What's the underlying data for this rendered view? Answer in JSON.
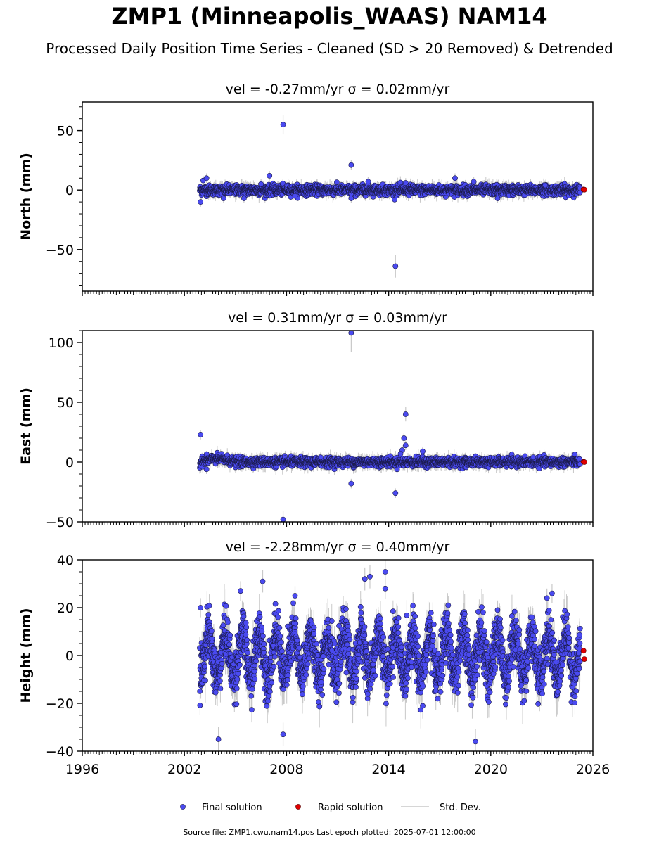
{
  "title": "ZMP1 (Minneapolis_WAAS) NAM14",
  "subtitle": "Processed Daily Position Time Series - Cleaned (SD > 20 Removed) & Detrended",
  "source_note": "Source file: ZMP1.cwu.nam14.pos  Last epoch plotted: 2025-07-01 12:00:00",
  "colors": {
    "final": "#4a4af0",
    "rapid": "#e00000",
    "stddev": "#c8c8c8"
  },
  "chart_data": [
    {
      "type": "scatter",
      "panel": "north",
      "title": "vel = -0.27mm/yr   σ = 0.02mm/yr",
      "ylabel": "North (mm)",
      "xlim": [
        1996,
        2026
      ],
      "ylim": [
        -85,
        74
      ],
      "yticks": [
        -50,
        0,
        50
      ],
      "x_start": 2002.9,
      "x_end": 2025.25,
      "typical_scatter_mm": 2.0,
      "final_outliers": [
        {
          "x": 2002.95,
          "y": -10
        },
        {
          "x": 2003.1,
          "y": 8
        },
        {
          "x": 2003.3,
          "y": 10
        },
        {
          "x": 2004.3,
          "y": -7
        },
        {
          "x": 2005.5,
          "y": -7
        },
        {
          "x": 2006.5,
          "y": 5
        },
        {
          "x": 2007.0,
          "y": 12
        },
        {
          "x": 2007.8,
          "y": 55
        },
        {
          "x": 2008.5,
          "y": -5
        },
        {
          "x": 2011.8,
          "y": 21
        },
        {
          "x": 2011.8,
          "y": -7
        },
        {
          "x": 2012.8,
          "y": 7
        },
        {
          "x": 2014.4,
          "y": -64
        },
        {
          "x": 2015.0,
          "y": 6
        },
        {
          "x": 2017.9,
          "y": 10
        },
        {
          "x": 2019.0,
          "y": 7
        },
        {
          "x": 2020.4,
          "y": -7
        },
        {
          "x": 2023.2,
          "y": 4
        },
        {
          "x": 2025.25,
          "y": 1.5
        }
      ],
      "rapid": [
        {
          "x": 2025.45,
          "y": 0.5
        },
        {
          "x": 2025.5,
          "y": 0.3
        }
      ]
    },
    {
      "type": "scatter",
      "panel": "east",
      "title": "vel = 0.31mm/yr   σ = 0.03mm/yr",
      "ylabel": "East (mm)",
      "xlim": [
        1996,
        2026
      ],
      "ylim": [
        -50,
        110
      ],
      "yticks": [
        -50,
        0,
        50,
        100
      ],
      "x_start": 2002.9,
      "x_end": 2025.25,
      "typical_scatter_mm": 1.8,
      "final_outliers": [
        {
          "x": 2002.95,
          "y": 23
        },
        {
          "x": 2003.3,
          "y": -6
        },
        {
          "x": 2007.8,
          "y": -48
        },
        {
          "x": 2011.8,
          "y": 108
        },
        {
          "x": 2011.8,
          "y": -18
        },
        {
          "x": 2014.4,
          "y": -26
        },
        {
          "x": 2015.0,
          "y": 40
        },
        {
          "x": 2014.9,
          "y": 20
        },
        {
          "x": 2015.0,
          "y": 14
        },
        {
          "x": 2014.8,
          "y": 10
        },
        {
          "x": 2014.7,
          "y": 7
        },
        {
          "x": 2016.0,
          "y": 9
        },
        {
          "x": 2010.0,
          "y": 4
        },
        {
          "x": 2022.5,
          "y": 4
        }
      ],
      "rapid": [
        {
          "x": 2025.45,
          "y": 0.3
        },
        {
          "x": 2025.5,
          "y": 0.0
        }
      ]
    },
    {
      "type": "scatter",
      "panel": "height",
      "title": "vel = -2.28mm/yr   σ = 0.40mm/yr",
      "ylabel": "Height (mm)",
      "xlim": [
        1996,
        2026
      ],
      "ylim": [
        -40,
        40
      ],
      "yticks": [
        -40,
        -20,
        0,
        20,
        40
      ],
      "x_start": 2002.9,
      "x_end": 2025.25,
      "seasonal_amplitude_mm": 9.0,
      "typical_scatter_mm": 5.0,
      "final_outliers": [
        {
          "x": 2002.95,
          "y": 20
        },
        {
          "x": 2004.0,
          "y": -35
        },
        {
          "x": 2005.3,
          "y": 27
        },
        {
          "x": 2006.6,
          "y": 31
        },
        {
          "x": 2007.8,
          "y": -33
        },
        {
          "x": 2008.5,
          "y": 25
        },
        {
          "x": 2012.6,
          "y": 32
        },
        {
          "x": 2012.9,
          "y": 33
        },
        {
          "x": 2013.8,
          "y": 35
        },
        {
          "x": 2013.8,
          "y": 28
        },
        {
          "x": 2017.5,
          "y": 21
        },
        {
          "x": 2019.1,
          "y": -36
        },
        {
          "x": 2020.4,
          "y": 19
        },
        {
          "x": 2023.3,
          "y": 24
        },
        {
          "x": 2023.6,
          "y": 26
        }
      ],
      "rapid": [
        {
          "x": 2025.45,
          "y": 2
        },
        {
          "x": 2025.5,
          "y": -1.5
        }
      ]
    }
  ],
  "xticks": [
    "1996",
    "2002",
    "2008",
    "2014",
    "2020",
    "2026"
  ],
  "legend": {
    "final": "Final solution",
    "rapid": "Rapid solution",
    "stddev": "Std. Dev."
  }
}
